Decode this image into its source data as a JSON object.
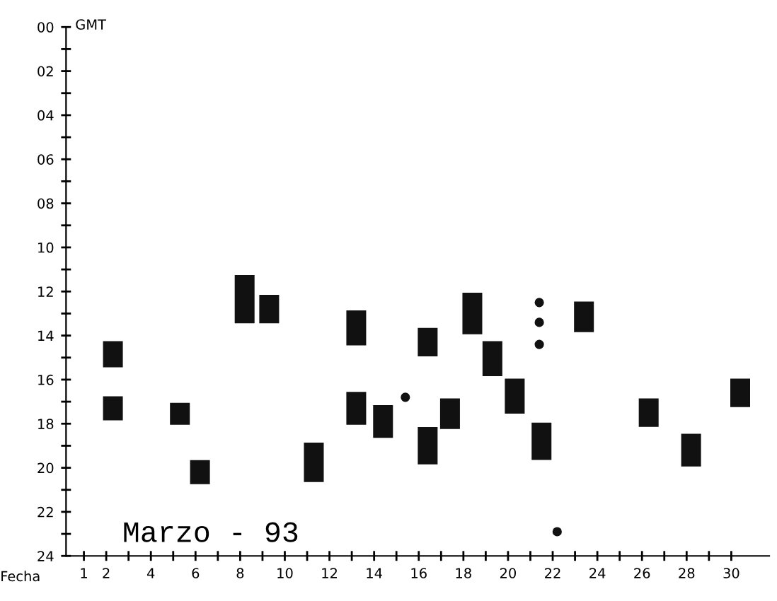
{
  "chart_data": {
    "type": "bar",
    "xlabel": "Fecha",
    "ylabel": "GMT",
    "annotations": [
      "Marzo - 93"
    ],
    "series": [
      {
        "color": "#111111",
        "x": [
          2.3,
          5.3,
          6.2,
          8.2,
          9.3,
          11.3,
          13.2,
          14.4,
          16.4,
          17.4,
          18.4,
          19.3,
          20.3,
          21.5,
          23.4,
          26.3,
          28.2,
          30.4
        ],
        "base": [
          14.3,
          17.1,
          19.7,
          11.3,
          12.2,
          18.9,
          12.9,
          17.2,
          13.7,
          16.9,
          12.1,
          14.3,
          16.0,
          18.0,
          12.5,
          16.9,
          18.5,
          16.0
        ],
        "values": [
          1.1,
          0.9,
          1.0,
          2.1,
          1.2,
          1.7,
          1.5,
          1.4,
          1.2,
          1.3,
          1.8,
          1.5,
          1.5,
          1.6,
          1.3,
          1.2,
          1.4,
          1.2
        ]
      },
      {
        "color": "#111111",
        "x": [
          2.3,
          13.2,
          16.4
        ],
        "base": [
          16.8,
          16.6,
          18.2
        ],
        "values": [
          1.0,
          1.4,
          1.6
        ]
      },
      {
        "type": "scatter",
        "color": "#111111",
        "marker": "circle",
        "x": [
          15.4,
          21.4,
          22.2
        ],
        "values": [
          16.8,
          12.5,
          22.9
        ]
      },
      {
        "type": "scatter",
        "color": "#111111",
        "marker": "circle",
        "x": [
          21.4
        ],
        "values": [
          13.4
        ]
      },
      {
        "type": "scatter",
        "color": "#111111",
        "marker": "circle",
        "x": [
          21.4
        ],
        "values": [
          14.4
        ]
      }
    ],
    "xlim": [
      0.2,
      31.7
    ],
    "xticks": [
      1,
      2,
      {
        "value": 3,
        "label": null
      },
      4,
      {
        "value": 5,
        "label": null
      },
      6,
      {
        "value": 7,
        "label": null
      },
      8,
      {
        "value": 9,
        "label": null
      },
      10,
      {
        "value": 11,
        "label": null
      },
      12,
      {
        "value": 13,
        "label": null
      },
      14,
      {
        "value": 15,
        "label": null
      },
      16,
      {
        "value": 17,
        "label": null
      },
      18,
      {
        "value": 19,
        "label": null
      },
      20,
      {
        "value": 21,
        "label": null
      },
      22,
      {
        "value": 23,
        "label": null
      },
      24,
      {
        "value": 25,
        "label": null
      },
      26,
      {
        "value": 27,
        "label": null
      },
      28,
      {
        "value": 29,
        "label": null
      },
      30
    ],
    "ylim": [
      24,
      0
    ],
    "yticks": [
      {
        "value": 0,
        "label": "00"
      },
      {
        "value": 1,
        "label": null
      },
      {
        "value": 2,
        "label": "02"
      },
      {
        "value": 3,
        "label": null
      },
      {
        "value": 4,
        "label": "04"
      },
      {
        "value": 5,
        "label": null
      },
      {
        "value": 6,
        "label": "06"
      },
      {
        "value": 7,
        "label": null
      },
      {
        "value": 8,
        "label": "08"
      },
      {
        "value": 9,
        "label": null
      },
      {
        "value": 10,
        "label": "10"
      },
      {
        "value": 11,
        "label": null
      },
      {
        "value": 12,
        "label": "12"
      },
      {
        "value": 13,
        "label": null
      },
      {
        "value": 14,
        "label": "14"
      },
      {
        "value": 15,
        "label": null
      },
      {
        "value": 16,
        "label": "16"
      },
      {
        "value": 17,
        "label": null
      },
      {
        "value": 18,
        "label": "18"
      },
      {
        "value": 19,
        "label": null
      },
      {
        "value": 20,
        "label": "20"
      },
      {
        "value": 21,
        "label": null
      },
      {
        "value": 22,
        "label": "22"
      },
      {
        "value": 23,
        "label": null
      },
      {
        "value": 24,
        "label": "24"
      }
    ],
    "grid": false,
    "legend": false
  }
}
